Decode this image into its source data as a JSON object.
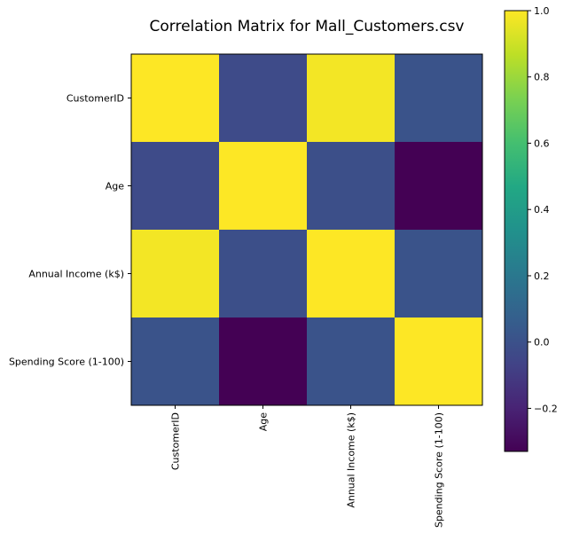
{
  "chart_data": {
    "type": "heatmap",
    "title": "Correlation Matrix for Mall_Customers.csv",
    "row_labels": [
      "CustomerID",
      "Age",
      "Annual Income (k$)",
      "Spending Score (1-100)"
    ],
    "col_labels": [
      "CustomerID",
      "Age",
      "Annual Income (k$)",
      "Spending Score (1-100)"
    ],
    "values": [
      [
        1.0,
        -0.03,
        0.98,
        0.01
      ],
      [
        -0.03,
        1.0,
        -0.01,
        -0.33
      ],
      [
        0.98,
        -0.01,
        1.0,
        0.01
      ],
      [
        0.01,
        -0.33,
        0.01,
        1.0
      ]
    ],
    "colormap": "viridis",
    "vmin": -0.33,
    "vmax": 1.0,
    "colorbar": {
      "ticks": [
        -0.2,
        0.0,
        0.2,
        0.4,
        0.6,
        0.8,
        1.0
      ],
      "tick_labels": [
        "−0.2",
        "0.0",
        "0.2",
        "0.4",
        "0.6",
        "0.8",
        "1.0"
      ],
      "placement": "right"
    }
  }
}
